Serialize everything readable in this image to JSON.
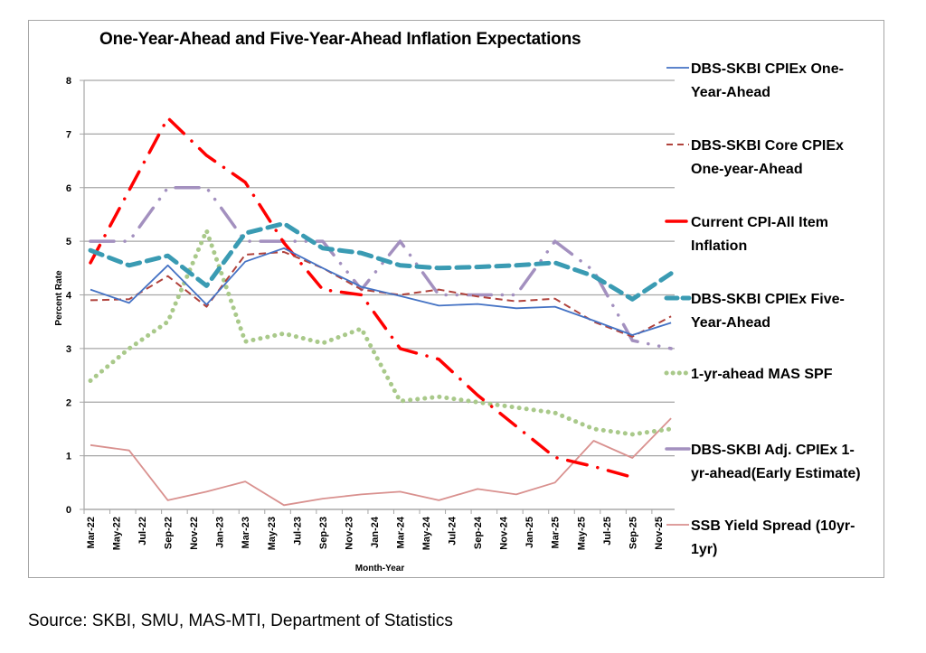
{
  "source_note": "Source: SKBI, SMU, MAS-MTI, Department of Statistics",
  "chart_data": {
    "type": "line",
    "title": "One-Year-Ahead and Five-Year-Ahead Inflation Expectations",
    "xlabel": "Month-Year",
    "ylabel": "Percent Rate",
    "ylim": [
      0,
      8
    ],
    "yticks": [
      "0",
      "1",
      "2",
      "3",
      "4",
      "5",
      "6",
      "7",
      "8"
    ],
    "grid": true,
    "legend_position": "right",
    "x_tick_labels": [
      "Mar-22",
      "May-22",
      "Jul-22",
      "Sep-22",
      "Nov-22",
      "Jan-23",
      "Mar-23",
      "May-23",
      "Jul-23",
      "Sep-23",
      "Nov-23",
      "Jan-24",
      "Mar-24",
      "May-24",
      "Jul-24",
      "Sep-24",
      "Nov-24",
      "Jan-25",
      "Mar-25",
      "May-25",
      "Jul-25",
      "Sep-25",
      "Nov-25"
    ],
    "x": [
      "Mar-22",
      "Jun-22",
      "Sep-22",
      "Dec-22",
      "Mar-23",
      "Jun-23",
      "Sep-23",
      "Dec-23",
      "Mar-24",
      "Jun-24",
      "Sep-24",
      "Dec-24",
      "Mar-25",
      "Jun-25",
      "Sep-25",
      "Dec-25"
    ],
    "series": [
      {
        "name": "DBS-SKBI CPIEx One-Year-Ahead",
        "legend_lines": [
          "DBS-SKBI CPIEx One-",
          "Year-Ahead"
        ],
        "color": "#4472c4",
        "style": "solid",
        "values": [
          4.1,
          3.85,
          4.55,
          3.82,
          4.62,
          4.87,
          4.5,
          4.15,
          3.98,
          3.8,
          3.83,
          3.75,
          3.78,
          3.52,
          3.25,
          3.48
        ]
      },
      {
        "name": "DBS-SKBI Core CPIEx One-year-Ahead",
        "legend_lines": [
          "DBS-SKBI Core CPIEx",
          "One-year-Ahead"
        ],
        "color": "#b0423c",
        "style": "dash",
        "values": [
          3.9,
          3.92,
          4.35,
          3.78,
          4.75,
          4.8,
          4.5,
          4.1,
          4.0,
          4.1,
          3.97,
          3.88,
          3.93,
          3.5,
          3.22,
          3.6
        ]
      },
      {
        "name": "Current CPI-All Item Inflation",
        "legend_lines": [
          "Current CPI-All Item",
          "Inflation"
        ],
        "color": "#ff0000",
        "style": "dashdot",
        "values": [
          4.6,
          5.95,
          7.3,
          6.6,
          6.1,
          4.97,
          4.1,
          4.0,
          3.0,
          2.8,
          2.13,
          1.55,
          0.97,
          0.8,
          0.6,
          null
        ]
      },
      {
        "name": "DBS-SKBI CPIEx Five-Year-Ahead",
        "legend_lines": [
          "DBS-SKBI CPIEx Five-",
          "Year-Ahead"
        ],
        "color": "#3a9bb3",
        "style": "thickdash",
        "values": [
          4.83,
          4.55,
          4.73,
          4.17,
          5.15,
          5.33,
          4.87,
          4.78,
          4.55,
          4.5,
          4.52,
          4.55,
          4.6,
          4.35,
          3.92,
          4.4
        ]
      },
      {
        "name": "1-yr-ahead MAS SPF",
        "legend_lines": [
          "1-yr-ahead MAS SPF"
        ],
        "color": "#a9c98a",
        "style": "dot",
        "values": [
          2.4,
          3.0,
          3.5,
          5.2,
          3.13,
          3.28,
          3.1,
          3.37,
          2.02,
          2.1,
          2.0,
          1.9,
          1.8,
          1.5,
          1.4,
          1.5
        ]
      },
      {
        "name": "DBS-SKBI Adj. CPIEx 1-yr-ahead(Early Estimate)",
        "legend_lines": [
          "DBS-SKBI Adj. CPIEx 1-",
          "yr-ahead(Early Estimate)"
        ],
        "color": "#a390bf",
        "style": "longdashdotdot",
        "values": [
          5.0,
          5.0,
          6.0,
          6.0,
          5.0,
          5.0,
          5.0,
          4.1,
          5.0,
          4.0,
          4.0,
          4.0,
          5.0,
          4.45,
          3.15,
          3.0
        ]
      },
      {
        "name": "SSB Yield Spread (10yr-1yr)",
        "legend_lines": [
          "SSB Yield Spread (10yr-",
          "1yr)"
        ],
        "color": "#d9918f",
        "style": "solid",
        "values": [
          1.2,
          1.1,
          0.17,
          0.33,
          0.52,
          0.08,
          0.2,
          0.28,
          0.33,
          0.17,
          0.38,
          0.28,
          0.5,
          1.28,
          0.96,
          1.7
        ]
      }
    ]
  }
}
